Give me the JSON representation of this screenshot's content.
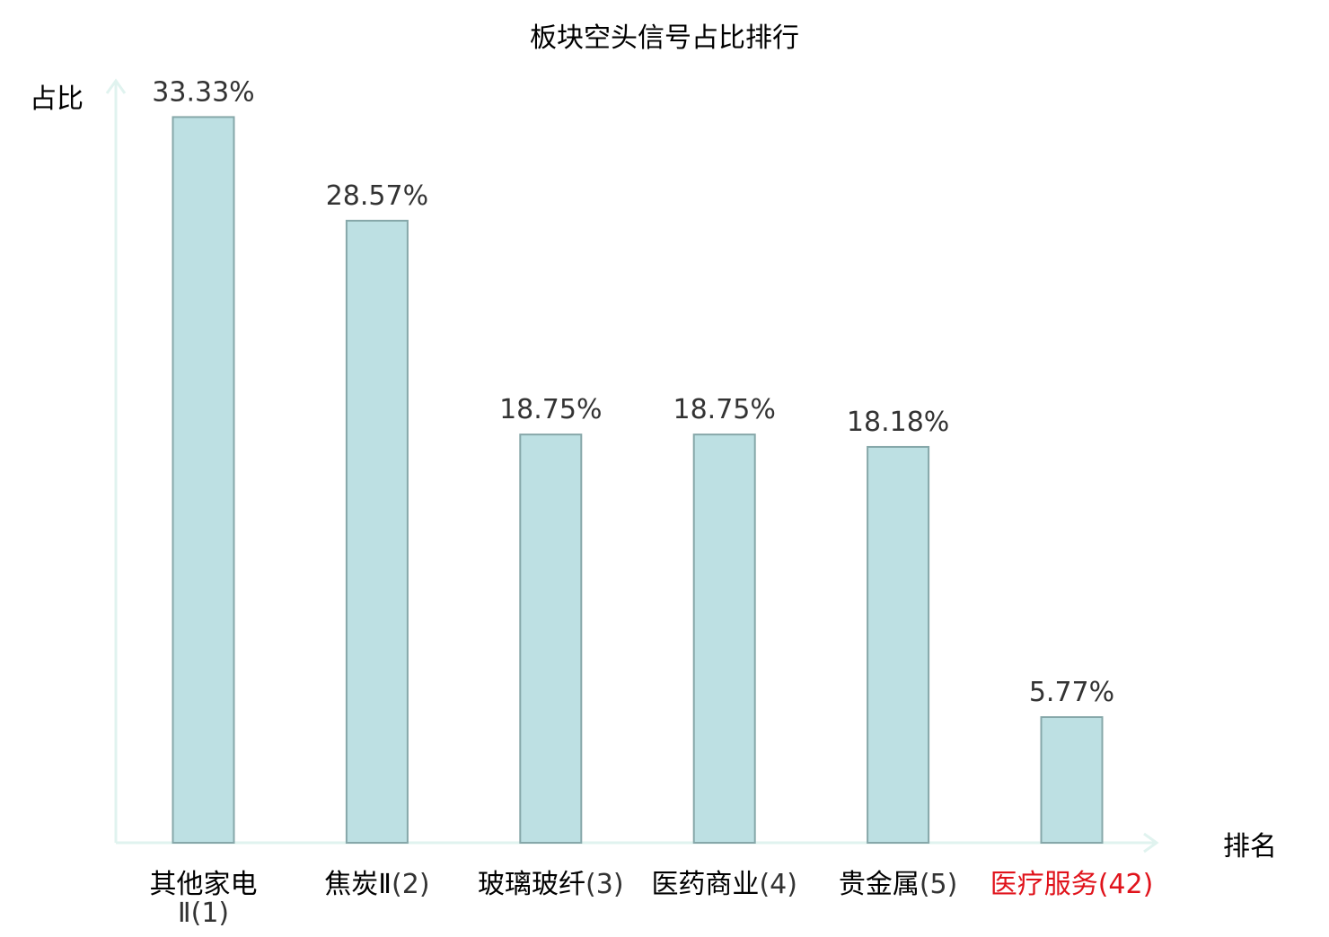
{
  "chart_data": {
    "type": "bar",
    "title": "板块空头信号占比排行",
    "xlabel": "排名",
    "ylabel": "占比",
    "categories": [
      {
        "name": "其他家电Ⅱ",
        "rank": "(1)",
        "highlight": false
      },
      {
        "name": "焦炭Ⅱ",
        "rank": "(2)",
        "highlight": false
      },
      {
        "name": "玻璃玻纤",
        "rank": "(3)",
        "highlight": false
      },
      {
        "name": "医药商业",
        "rank": "(4)",
        "highlight": false
      },
      {
        "name": "贵金属",
        "rank": "(5)",
        "highlight": false
      },
      {
        "name": "医疗服务",
        "rank": "(42)",
        "highlight": true
      }
    ],
    "values": [
      33.33,
      28.57,
      18.75,
      18.75,
      18.18,
      5.77
    ],
    "value_labels": [
      "33.33%",
      "28.57%",
      "18.75%",
      "18.75%",
      "18.18%",
      "5.77%"
    ],
    "ylim": [
      0,
      35
    ],
    "grid": false,
    "legend": "none",
    "colors": {
      "bar_fill": "#bde0e3",
      "bar_stroke": "#86a7a9",
      "axis": "#e0f3ef",
      "text": "#000000",
      "value_text": "#333333",
      "rank_text": "#333333",
      "highlight_text": "#e0131b"
    }
  }
}
